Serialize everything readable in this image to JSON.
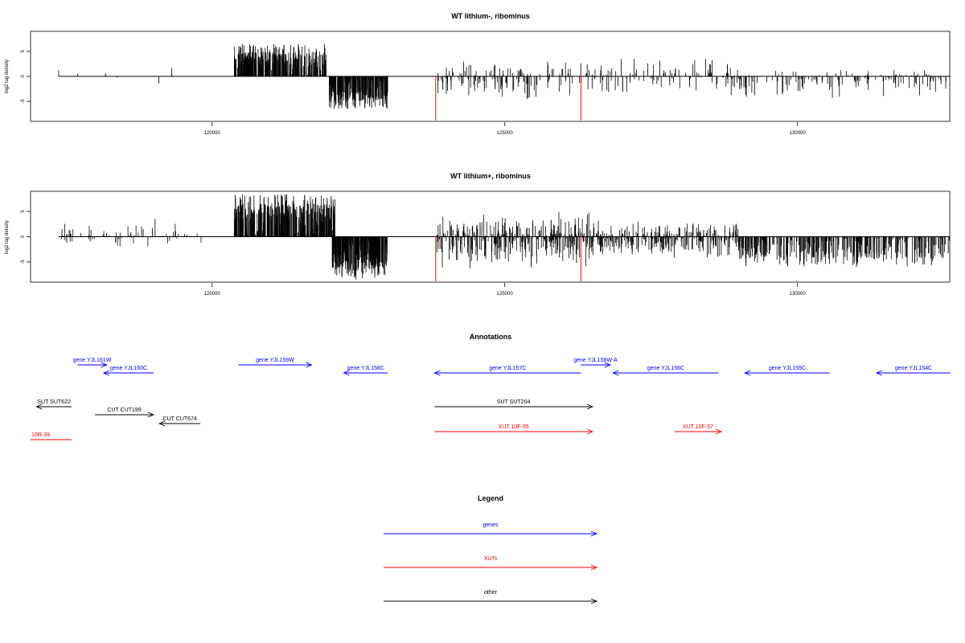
{
  "chart_data": [
    {
      "type": "bar",
      "title": "WT lithium-, ribominus",
      "ylabel": "log2 tag density",
      "xlabel": "",
      "xlim": [
        116900,
        132600
      ],
      "ylim": [
        -9,
        9
      ],
      "x_ticks": [
        120000,
        125000,
        130000
      ],
      "y_ticks": [
        5,
        0,
        -5
      ],
      "segments": [
        {
          "x0": 117380,
          "x1": 117380,
          "min": -2,
          "max": 2,
          "seed": 11,
          "density": 2
        },
        {
          "x0": 117700,
          "x1": 117800,
          "min": 0,
          "max": 1.4,
          "seed": 3,
          "density": 1
        },
        {
          "x0": 118180,
          "x1": 118180,
          "min": -1.5,
          "max": 2.8,
          "seed": 5,
          "density": 2
        },
        {
          "x0": 118380,
          "x1": 118380,
          "min": -0.8,
          "max": 0,
          "seed": 6,
          "density": 1
        },
        {
          "x0": 118800,
          "x1": 118800,
          "min": -0.8,
          "max": 0,
          "seed": 7,
          "density": 1
        },
        {
          "x0": 119090,
          "x1": 119090,
          "min": -2.2,
          "max": 0,
          "seed": 8,
          "density": 1
        },
        {
          "x0": 119300,
          "x1": 119320,
          "min": -1,
          "max": 3.4,
          "seed": 9,
          "density": 3
        },
        {
          "x0": 120380,
          "x1": 121950,
          "min": 0,
          "max": 6.5,
          "base": 2.5,
          "seed": 21,
          "density": 320
        },
        {
          "x0": 122000,
          "x1": 123000,
          "min": -6.5,
          "max": 0,
          "base": -2.5,
          "seed": 23,
          "density": 260
        },
        {
          "x0": 123820,
          "x1": 125700,
          "min": -5,
          "max": 3.3,
          "seed": 27,
          "density": 240,
          "sparse": 0.55
        },
        {
          "x0": 125700,
          "x1": 129000,
          "min": -4,
          "max": 4,
          "seed": 29,
          "density": 260,
          "sparse": 0.6
        },
        {
          "x0": 129000,
          "x1": 132600,
          "min": -4.5,
          "max": 1.5,
          "seed": 31,
          "density": 240,
          "sparse": 0.6
        }
      ],
      "highlight_bars": [
        {
          "x": 123820,
          "value": -8.8,
          "color": "#ff0000"
        },
        {
          "x": 126300,
          "value": -8.8,
          "color": "#ff0000"
        }
      ]
    },
    {
      "type": "bar",
      "title": "WT lithium+, ribominus",
      "ylabel": "log2 tag density",
      "xlabel": "",
      "xlim": [
        116900,
        132600
      ],
      "ylim": [
        -9,
        9
      ],
      "x_ticks": [
        120000,
        125000,
        130000
      ],
      "y_ticks": [
        5,
        0,
        -5
      ],
      "segments": [
        {
          "x0": 117380,
          "x1": 119400,
          "min": -2.4,
          "max": 3.8,
          "seed": 41,
          "density": 140,
          "sparse": 0.5
        },
        {
          "x0": 119400,
          "x1": 120000,
          "min": -1.5,
          "max": 1.6,
          "seed": 42,
          "density": 6
        },
        {
          "x0": 120380,
          "x1": 122100,
          "min": 0,
          "max": 8.5,
          "base": 3.5,
          "seed": 43,
          "density": 360
        },
        {
          "x0": 122050,
          "x1": 123000,
          "min": -8.5,
          "max": 0,
          "base": -3,
          "seed": 44,
          "density": 260
        },
        {
          "x0": 123820,
          "x1": 126500,
          "min": -6.5,
          "max": 5,
          "seed": 45,
          "density": 420,
          "sparse": 0.9
        },
        {
          "x0": 126500,
          "x1": 129000,
          "min": -4.5,
          "max": 3.5,
          "seed": 46,
          "density": 380,
          "sparse": 0.85
        },
        {
          "x0": 129000,
          "x1": 132600,
          "min": -6,
          "max": 1.2,
          "base": -2,
          "seed": 47,
          "density": 420,
          "sparse": 0.85
        }
      ],
      "highlight_bars": [
        {
          "x": 123820,
          "value": -8.8,
          "color": "#ff0000"
        },
        {
          "x": 126300,
          "value": -8.8,
          "color": "#ff0000"
        }
      ]
    }
  ],
  "annotations": {
    "title": "Annotations",
    "features": [
      {
        "label": "gene YJL161W",
        "x0": 117700,
        "x1": 118200,
        "strand": "+",
        "row": 0,
        "color": "#0000ff"
      },
      {
        "label": "gene YJL160C",
        "x0": 118150,
        "x1": 119000,
        "strand": "-",
        "row": 1,
        "color": "#0000ff"
      },
      {
        "label": "gene YJL159W",
        "x0": 120450,
        "x1": 121700,
        "strand": "+",
        "row": 0,
        "color": "#0000ff"
      },
      {
        "label": "gene YJL158C",
        "x0": 122250,
        "x1": 123000,
        "strand": "-",
        "row": 1,
        "color": "#0000ff"
      },
      {
        "label": "gene YJL157C",
        "x0": 123800,
        "x1": 126300,
        "strand": "-",
        "row": 1,
        "color": "#0000ff"
      },
      {
        "label": "gene YJL156W-A",
        "x0": 126300,
        "x1": 126800,
        "strand": "+",
        "row": 0,
        "color": "#0000ff"
      },
      {
        "label": "gene YJL156C",
        "x0": 126850,
        "x1": 128650,
        "strand": "-",
        "row": 1,
        "color": "#0000ff"
      },
      {
        "label": "gene YJL155C",
        "x0": 129100,
        "x1": 130550,
        "strand": "-",
        "row": 1,
        "color": "#0000ff"
      },
      {
        "label": "gene YJL154C",
        "x0": 131350,
        "x1": 133000,
        "strand": "-",
        "row": 1,
        "color": "#0000ff"
      },
      {
        "label": "SUT SUT622",
        "x0": 117000,
        "x1": 117600,
        "strand": "-",
        "row": 2,
        "color": "#000000"
      },
      {
        "label": "SUT SUT204",
        "x0": 123800,
        "x1": 126500,
        "strand": "+",
        "row": 2,
        "color": "#000000"
      },
      {
        "label": "CUT CUT199",
        "x0": 118000,
        "x1": 119000,
        "strand": "+",
        "row": 3,
        "color": "#000000"
      },
      {
        "label": "CUT CUT674",
        "x0": 119100,
        "x1": 119800,
        "strand": "-",
        "row": 4,
        "color": "#000000"
      },
      {
        "label": "XUT 10F-55",
        "x0": 123800,
        "x1": 126500,
        "strand": "+",
        "row": 5,
        "color": "#ff0000"
      },
      {
        "label": "XUT 10F-57",
        "x0": 127900,
        "x1": 128700,
        "strand": "+",
        "row": 5,
        "color": "#ff0000"
      },
      {
        "label": "10R-39",
        "x0": 116880,
        "x1": 117600,
        "strand": "-",
        "row": 6,
        "color": "#ff0000",
        "clip_left": true
      }
    ]
  },
  "legend": {
    "title": "Legend",
    "items": [
      {
        "label": "genes",
        "color": "#0000ff"
      },
      {
        "label": "XUTs",
        "color": "#ff0000"
      },
      {
        "label": "other",
        "color": "#000000"
      }
    ]
  }
}
